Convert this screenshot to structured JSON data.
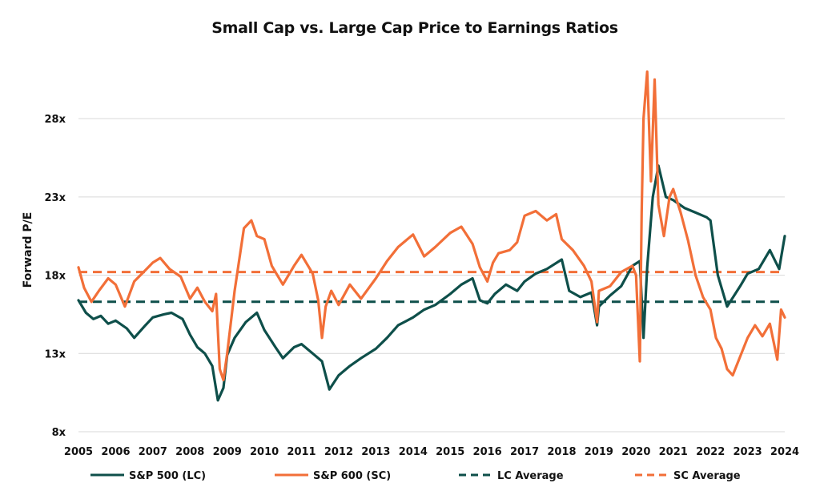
{
  "chart_data": {
    "type": "line",
    "title": "Small Cap vs. Large Cap Price to Earnings Ratios",
    "xlabel": "",
    "ylabel": "Forward P/E",
    "x_ticks": [
      "2005",
      "2006",
      "2007",
      "2008",
      "2009",
      "2010",
      "2011",
      "2012",
      "2013",
      "2014",
      "2015",
      "2016",
      "2017",
      "2018",
      "2019",
      "2020",
      "2021",
      "2022",
      "2023",
      "2024"
    ],
    "xlim": [
      2005,
      2024
    ],
    "y_ticks": [
      8,
      13,
      18,
      23,
      28
    ],
    "y_tick_labels": [
      "8x",
      "13x",
      "18x",
      "23x",
      "28x"
    ],
    "ylim": [
      8,
      32
    ],
    "grid": "horizontal",
    "legend_position": "bottom",
    "colors": {
      "lc": "#0e4f4a",
      "sc": "#f26f38",
      "grid": "#d9d9d9"
    },
    "series": [
      {
        "name": "S&P 500 (LC)",
        "style": "solid",
        "x": [
          2005.0,
          2005.2,
          2005.4,
          2005.6,
          2005.8,
          2006.0,
          2006.3,
          2006.5,
          2006.8,
          2007.0,
          2007.3,
          2007.5,
          2007.8,
          2008.0,
          2008.2,
          2008.4,
          2008.6,
          2008.75,
          2008.9,
          2009.0,
          2009.2,
          2009.5,
          2009.8,
          2010.0,
          2010.3,
          2010.5,
          2010.8,
          2011.0,
          2011.3,
          2011.55,
          2011.75,
          2012.0,
          2012.3,
          2012.6,
          2013.0,
          2013.3,
          2013.6,
          2014.0,
          2014.3,
          2014.6,
          2015.0,
          2015.3,
          2015.6,
          2015.8,
          2016.0,
          2016.2,
          2016.5,
          2016.8,
          2017.0,
          2017.3,
          2017.6,
          2018.0,
          2018.2,
          2018.5,
          2018.8,
          2018.95,
          2019.0,
          2019.3,
          2019.6,
          2019.9,
          2020.1,
          2020.2,
          2020.3,
          2020.45,
          2020.6,
          2020.8,
          2021.0,
          2021.3,
          2021.6,
          2021.9,
          2022.0,
          2022.2,
          2022.45,
          2022.8,
          2023.0,
          2023.3,
          2023.6,
          2023.85,
          2024.0
        ],
        "values": [
          16.4,
          15.6,
          15.2,
          15.4,
          14.9,
          15.1,
          14.6,
          14.0,
          14.8,
          15.3,
          15.5,
          15.6,
          15.2,
          14.2,
          13.4,
          13.0,
          12.2,
          10.0,
          10.8,
          12.9,
          14.0,
          15.0,
          15.6,
          14.5,
          13.4,
          12.7,
          13.4,
          13.6,
          13.0,
          12.5,
          10.7,
          11.6,
          12.2,
          12.7,
          13.3,
          14.0,
          14.8,
          15.3,
          15.8,
          16.1,
          16.8,
          17.4,
          17.8,
          16.4,
          16.2,
          16.8,
          17.4,
          17.0,
          17.6,
          18.1,
          18.4,
          19.0,
          17.0,
          16.6,
          16.9,
          14.8,
          16.0,
          16.7,
          17.3,
          18.6,
          18.9,
          14.0,
          18.5,
          23.0,
          25.0,
          23.0,
          22.8,
          22.3,
          22.0,
          21.7,
          21.5,
          18.0,
          16.0,
          17.3,
          18.1,
          18.4,
          19.6,
          18.4,
          20.5
        ]
      },
      {
        "name": "S&P 600 (SC)",
        "style": "solid",
        "x": [
          2005.0,
          2005.15,
          2005.35,
          2005.55,
          2005.8,
          2006.0,
          2006.25,
          2006.5,
          2006.75,
          2007.0,
          2007.2,
          2007.45,
          2007.75,
          2008.0,
          2008.2,
          2008.4,
          2008.6,
          2008.7,
          2008.8,
          2008.9,
          2009.0,
          2009.2,
          2009.45,
          2009.65,
          2009.8,
          2010.0,
          2010.2,
          2010.5,
          2010.8,
          2011.0,
          2011.3,
          2011.45,
          2011.55,
          2011.65,
          2011.8,
          2012.0,
          2012.3,
          2012.6,
          2013.0,
          2013.3,
          2013.6,
          2014.0,
          2014.3,
          2014.6,
          2015.0,
          2015.3,
          2015.6,
          2015.8,
          2016.0,
          2016.15,
          2016.3,
          2016.6,
          2016.8,
          2017.0,
          2017.3,
          2017.6,
          2017.85,
          2018.0,
          2018.3,
          2018.6,
          2018.8,
          2018.95,
          2019.0,
          2019.3,
          2019.6,
          2019.9,
          2020.0,
          2020.1,
          2020.15,
          2020.2,
          2020.3,
          2020.4,
          2020.5,
          2020.6,
          2020.75,
          2020.9,
          2021.0,
          2021.2,
          2021.4,
          2021.6,
          2021.8,
          2022.0,
          2022.15,
          2022.3,
          2022.45,
          2022.6,
          2022.8,
          2023.0,
          2023.2,
          2023.4,
          2023.6,
          2023.8,
          2023.9,
          2024.0
        ],
        "values": [
          18.5,
          17.2,
          16.3,
          17.0,
          17.8,
          17.4,
          16.0,
          17.6,
          18.2,
          18.8,
          19.1,
          18.4,
          17.9,
          16.5,
          17.2,
          16.3,
          15.7,
          16.8,
          12.0,
          11.3,
          13.0,
          17.0,
          21.0,
          21.5,
          20.5,
          20.3,
          18.6,
          17.4,
          18.6,
          19.3,
          18.1,
          16.4,
          14.0,
          16.0,
          17.0,
          16.1,
          17.4,
          16.5,
          17.8,
          18.9,
          19.8,
          20.6,
          19.2,
          19.8,
          20.7,
          21.1,
          20.0,
          18.5,
          17.6,
          18.8,
          19.4,
          19.6,
          20.1,
          21.8,
          22.1,
          21.5,
          21.9,
          20.3,
          19.6,
          18.6,
          17.6,
          15.0,
          17.0,
          17.3,
          18.2,
          18.6,
          18.0,
          12.5,
          22.0,
          28.0,
          31.0,
          24.0,
          30.5,
          22.5,
          20.5,
          23.0,
          23.5,
          22.0,
          20.2,
          18.0,
          16.6,
          15.8,
          14.0,
          13.3,
          12.0,
          11.6,
          12.8,
          14.0,
          14.8,
          14.1,
          14.9,
          12.6,
          15.8,
          15.3
        ]
      },
      {
        "name": "LC Average",
        "style": "dashed",
        "value": 16.3
      },
      {
        "name": "SC Average",
        "style": "dashed",
        "value": 18.2
      }
    ]
  }
}
